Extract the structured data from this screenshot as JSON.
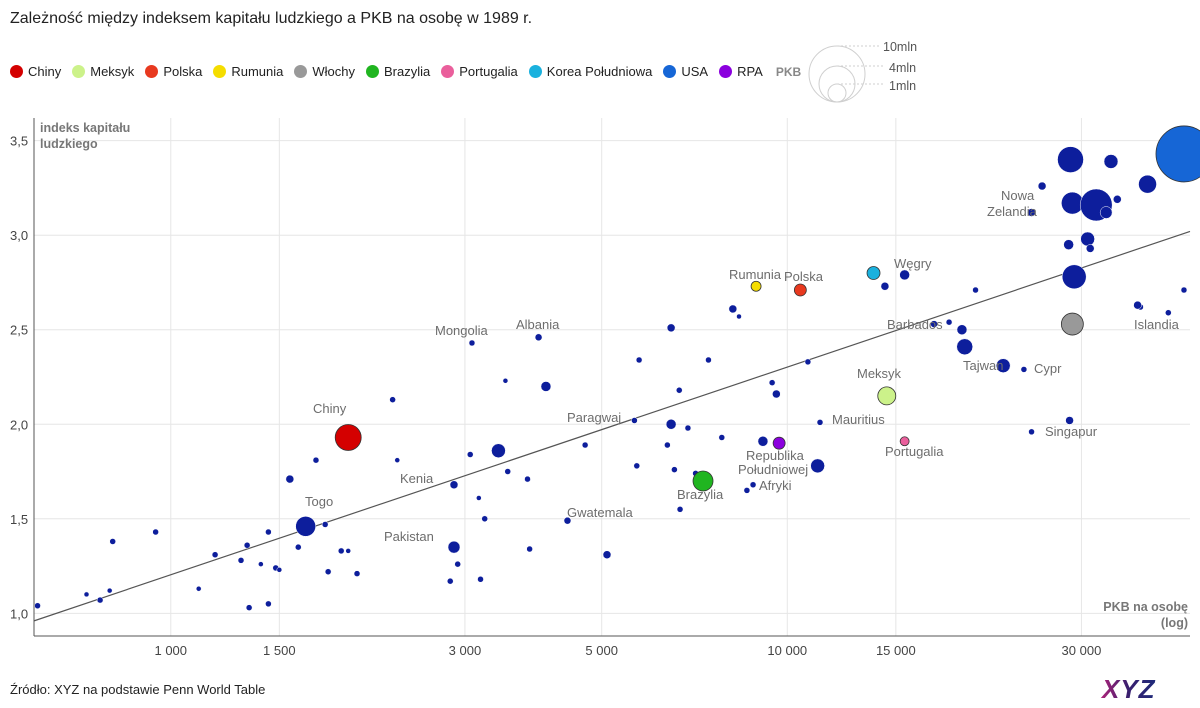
{
  "chart_data": {
    "type": "scatter",
    "title": "Zależność między indeksem kapitału ludzkiego a PKB na osobę w 1989 r.",
    "xlabel": [
      "PKB na osobę",
      "(log)"
    ],
    "ylabel": [
      "indeks kapitału",
      "ludzkiego"
    ],
    "x_scale": "log",
    "xlim": [
      600,
      45000
    ],
    "ylim": [
      0.88,
      3.62
    ],
    "x_ticks": [
      1000,
      1500,
      3000,
      5000,
      10000,
      15000,
      30000
    ],
    "x_tick_labels": [
      "1 000",
      "1 500",
      "3 000",
      "5 000",
      "10 000",
      "15 000",
      "30 000"
    ],
    "y_ticks": [
      1.0,
      1.5,
      2.0,
      2.5,
      3.0,
      3.5
    ],
    "y_tick_labels": [
      "1,0",
      "1,5",
      "2,0",
      "2,5",
      "3,0",
      "3,5"
    ],
    "grid": true,
    "size_legend": {
      "title": "PKB",
      "labels": [
        "10mln",
        "4mln",
        "1mln"
      ]
    },
    "trendline": {
      "x": [
        600,
        45000
      ],
      "y": [
        0.96,
        3.02
      ]
    },
    "highlighted": [
      {
        "name": "Chiny",
        "color": "#d40000",
        "x": 1940,
        "y": 1.93,
        "r": 13
      },
      {
        "name": "Meksyk",
        "color": "#ccf28a",
        "x": 14500,
        "y": 2.15,
        "r": 9
      },
      {
        "name": "Polska",
        "color": "#e8391f",
        "x": 10500,
        "y": 2.71,
        "r": 6
      },
      {
        "name": "Rumunia",
        "color": "#f5dd00",
        "x": 8900,
        "y": 2.73,
        "r": 5
      },
      {
        "name": "Włochy",
        "color": "#999999",
        "x": 29000,
        "y": 2.53,
        "r": 11
      },
      {
        "name": "Brazylia",
        "color": "#20b520",
        "x": 7300,
        "y": 1.7,
        "r": 10
      },
      {
        "name": "Portugalia",
        "color": "#ea5f9c",
        "x": 15500,
        "y": 1.91,
        "r": 4.5
      },
      {
        "name": "Korea Południowa",
        "color": "#1ab1de",
        "x": 13800,
        "y": 2.8,
        "r": 6.5
      },
      {
        "name": "USA",
        "color": "#1666d6",
        "x": 44000,
        "y": 3.43,
        "r": 28
      },
      {
        "name": "RPA",
        "color": "#8b00de",
        "x": 9700,
        "y": 1.9,
        "r": 6
      }
    ],
    "other_countries": [
      {
        "label": "Mongolia",
        "x": 3080,
        "y": 2.43,
        "r": 3
      },
      {
        "label": "Albania",
        "x": 3950,
        "y": 2.46,
        "r": 3.5
      },
      {
        "label": "Togo",
        "x": 1780,
        "y": 1.47,
        "r": 3
      },
      {
        "label": "Kenia",
        "x": 2880,
        "y": 1.68,
        "r": 4
      },
      {
        "label": "Pakistan",
        "x": 2880,
        "y": 1.35,
        "r": 6
      },
      {
        "label": "Gwatemala",
        "x": 4400,
        "y": 1.49,
        "r": 3.5
      },
      {
        "label": "Paragwaj",
        "x": 5650,
        "y": 2.02,
        "r": 3
      },
      {
        "label": "Węgry",
        "x": 15500,
        "y": 2.79,
        "r": 5
      },
      {
        "label": "Barbados",
        "x": 17300,
        "y": 2.53,
        "r": 3.5
      },
      {
        "label": "Tajwan",
        "x": 22400,
        "y": 2.31,
        "r": 7
      },
      {
        "label": "Cypr",
        "x": 24200,
        "y": 2.29,
        "r": 3
      },
      {
        "label": "Mauritius",
        "x": 11300,
        "y": 2.01,
        "r": 3
      },
      {
        "label": "Singapur",
        "x": 28700,
        "y": 2.02,
        "r": 4
      },
      {
        "label": "Nowa Zelandia",
        "x": 25900,
        "y": 3.26,
        "r": 4
      },
      {
        "label": "Islandia",
        "x": 37400,
        "y": 2.62,
        "r": 3
      },
      {
        "x": 608,
        "y": 1.04,
        "r": 3
      },
      {
        "x": 730,
        "y": 1.1,
        "r": 2.5
      },
      {
        "x": 768,
        "y": 1.07,
        "r": 3
      },
      {
        "x": 796,
        "y": 1.12,
        "r": 2.5
      },
      {
        "x": 805,
        "y": 1.38,
        "r": 3
      },
      {
        "x": 945,
        "y": 1.43,
        "r": 3
      },
      {
        "x": 1110,
        "y": 1.13,
        "r": 2.5
      },
      {
        "x": 1180,
        "y": 1.31,
        "r": 3
      },
      {
        "x": 1300,
        "y": 1.28,
        "r": 3
      },
      {
        "x": 1330,
        "y": 1.36,
        "r": 3
      },
      {
        "x": 1340,
        "y": 1.03,
        "r": 3
      },
      {
        "x": 1400,
        "y": 1.26,
        "r": 2.5
      },
      {
        "x": 1440,
        "y": 1.43,
        "r": 3
      },
      {
        "x": 1440,
        "y": 1.05,
        "r": 3
      },
      {
        "x": 1480,
        "y": 1.24,
        "r": 3
      },
      {
        "x": 1500,
        "y": 1.23,
        "r": 2.5
      },
      {
        "x": 1560,
        "y": 1.71,
        "r": 4
      },
      {
        "x": 1610,
        "y": 1.35,
        "r": 3
      },
      {
        "x": 1655,
        "y": 1.46,
        "r": 10
      },
      {
        "x": 1720,
        "y": 1.81,
        "r": 3
      },
      {
        "x": 1800,
        "y": 1.22,
        "r": 3
      },
      {
        "x": 1890,
        "y": 1.33,
        "r": 3
      },
      {
        "x": 1940,
        "y": 1.33,
        "r": 2.5
      },
      {
        "x": 2005,
        "y": 1.21,
        "r": 3
      },
      {
        "x": 2290,
        "y": 2.13,
        "r": 3
      },
      {
        "x": 2330,
        "y": 1.81,
        "r": 2.5
      },
      {
        "x": 2840,
        "y": 1.17,
        "r": 3
      },
      {
        "x": 2920,
        "y": 1.26,
        "r": 3
      },
      {
        "x": 3060,
        "y": 1.84,
        "r": 3
      },
      {
        "x": 3160,
        "y": 1.61,
        "r": 2.5
      },
      {
        "x": 3180,
        "y": 1.18,
        "r": 3
      },
      {
        "x": 3230,
        "y": 1.5,
        "r": 3
      },
      {
        "x": 3400,
        "y": 1.86,
        "r": 7
      },
      {
        "x": 3490,
        "y": 2.23,
        "r": 2.5
      },
      {
        "x": 3520,
        "y": 1.75,
        "r": 3
      },
      {
        "x": 3790,
        "y": 1.71,
        "r": 3
      },
      {
        "x": 3820,
        "y": 1.34,
        "r": 3
      },
      {
        "x": 4060,
        "y": 2.2,
        "r": 5
      },
      {
        "x": 4700,
        "y": 1.89,
        "r": 3
      },
      {
        "x": 5100,
        "y": 1.31,
        "r": 4
      },
      {
        "x": 5700,
        "y": 1.78,
        "r": 3
      },
      {
        "x": 5750,
        "y": 2.34,
        "r": 3
      },
      {
        "x": 6390,
        "y": 1.89,
        "r": 3
      },
      {
        "x": 6480,
        "y": 2.51,
        "r": 4
      },
      {
        "x": 6480,
        "y": 2.0,
        "r": 5
      },
      {
        "x": 6560,
        "y": 1.76,
        "r": 3
      },
      {
        "x": 6680,
        "y": 2.18,
        "r": 3
      },
      {
        "x": 6700,
        "y": 1.55,
        "r": 3
      },
      {
        "x": 6900,
        "y": 1.98,
        "r": 3
      },
      {
        "x": 7100,
        "y": 1.74,
        "r": 3
      },
      {
        "x": 7450,
        "y": 2.34,
        "r": 3
      },
      {
        "x": 7830,
        "y": 1.93,
        "r": 3
      },
      {
        "x": 8160,
        "y": 2.61,
        "r": 4
      },
      {
        "x": 8350,
        "y": 2.57,
        "r": 2.5
      },
      {
        "x": 8600,
        "y": 1.65,
        "r": 3
      },
      {
        "x": 8800,
        "y": 1.68,
        "r": 3
      },
      {
        "x": 9130,
        "y": 1.91,
        "r": 5
      },
      {
        "x": 9450,
        "y": 2.22,
        "r": 3
      },
      {
        "x": 9600,
        "y": 2.16,
        "r": 4
      },
      {
        "x": 10800,
        "y": 2.33,
        "r": 3
      },
      {
        "x": 11200,
        "y": 1.78,
        "r": 7
      },
      {
        "x": 14400,
        "y": 2.73,
        "r": 4
      },
      {
        "x": 18300,
        "y": 2.54,
        "r": 3
      },
      {
        "x": 19200,
        "y": 2.5,
        "r": 5
      },
      {
        "x": 19400,
        "y": 2.41,
        "r": 8
      },
      {
        "x": 20200,
        "y": 2.71,
        "r": 3
      },
      {
        "x": 24900,
        "y": 1.96,
        "r": 3
      },
      {
        "x": 24900,
        "y": 3.12,
        "r": 4
      },
      {
        "x": 28600,
        "y": 2.95,
        "r": 5
      },
      {
        "x": 28800,
        "y": 3.4,
        "r": 13
      },
      {
        "x": 29000,
        "y": 3.17,
        "r": 11
      },
      {
        "x": 29200,
        "y": 2.78,
        "r": 12
      },
      {
        "x": 30700,
        "y": 2.98,
        "r": 7
      },
      {
        "x": 31000,
        "y": 2.93,
        "r": 4
      },
      {
        "x": 31700,
        "y": 3.16,
        "r": 16
      },
      {
        "x": 32900,
        "y": 3.12,
        "r": 6
      },
      {
        "x": 33500,
        "y": 3.39,
        "r": 7
      },
      {
        "x": 34300,
        "y": 3.19,
        "r": 4
      },
      {
        "x": 37000,
        "y": 2.63,
        "r": 4
      },
      {
        "x": 38400,
        "y": 3.27,
        "r": 9
      },
      {
        "x": 41500,
        "y": 2.59,
        "r": 3
      },
      {
        "x": 44000,
        "y": 2.71,
        "r": 3
      },
      {
        "x": 45000,
        "y": 3.46,
        "r": 4
      }
    ]
  },
  "source_text": "Źródło: XYZ na podstawie Penn World Table",
  "logo_text": "XYZ"
}
